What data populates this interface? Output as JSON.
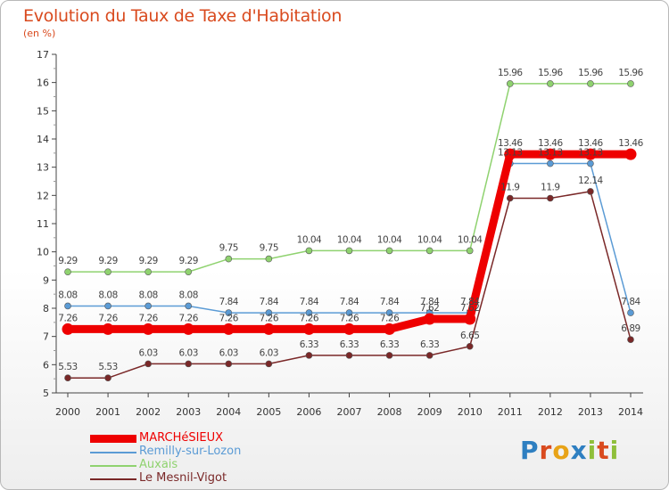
{
  "header": {
    "title": "Evolution du Taux de Taxe d'Habitation",
    "subtitle": "(en %)"
  },
  "logo": {
    "text": "Proxiti"
  },
  "chart_data": {
    "type": "line",
    "title": "Evolution du Taux de Taxe d'Habitation",
    "ylabel": "(en %)",
    "xlabel": "",
    "x": [
      "2000",
      "2001",
      "2002",
      "2003",
      "2004",
      "2005",
      "2006",
      "2007",
      "2008",
      "2009",
      "2010",
      "2011",
      "2012",
      "2013",
      "2014"
    ],
    "ylim": [
      5,
      17
    ],
    "yticks": [
      5,
      6,
      7,
      8,
      9,
      10,
      11,
      12,
      13,
      14,
      15,
      16,
      17
    ],
    "grid": false,
    "legend_position": "bottom-left",
    "series": [
      {
        "name": "MARCHéSIEUX",
        "color": "#ee0000",
        "values": [
          7.26,
          7.26,
          7.26,
          7.26,
          7.26,
          7.26,
          7.26,
          7.26,
          7.26,
          7.62,
          7.62,
          13.46,
          13.46,
          13.46,
          13.46
        ],
        "labels": [
          "7.26",
          "7.26",
          "7.26",
          "7.26",
          "7.26",
          "7.26",
          "7.26",
          "7.26",
          "7.26",
          "7.62",
          "7.62",
          "13.46",
          "13.46",
          "13.46",
          "13.46"
        ]
      },
      {
        "name": "Remilly-sur-Lozon",
        "color": "#5b9bd5",
        "values": [
          8.08,
          8.08,
          8.08,
          8.08,
          7.84,
          7.84,
          7.84,
          7.84,
          7.84,
          7.84,
          7.84,
          13.13,
          13.13,
          13.13,
          7.84
        ],
        "labels": [
          "8.08",
          "8.08",
          "8.08",
          "8.08",
          "7.84",
          "7.84",
          "7.84",
          "7.84",
          "7.84",
          "7.84",
          "7.84",
          "13.13",
          "13.13",
          "13.13",
          "7.84"
        ]
      },
      {
        "name": "Auxais",
        "color": "#8fd26f",
        "values": [
          9.29,
          9.29,
          9.29,
          9.29,
          9.75,
          9.75,
          10.04,
          10.04,
          10.04,
          10.04,
          10.04,
          15.96,
          15.96,
          15.96,
          15.96
        ],
        "labels": [
          "9.29",
          "9.29",
          "9.29",
          "9.29",
          "9.75",
          "9.75",
          "10.04",
          "10.04",
          "10.04",
          "10.04",
          "10.04",
          "15.96",
          "15.96",
          "15.96",
          "15.96"
        ]
      },
      {
        "name": "Le Mesnil-Vigot",
        "color": "#7a2828",
        "values": [
          5.53,
          5.53,
          6.03,
          6.03,
          6.03,
          6.03,
          6.33,
          6.33,
          6.33,
          6.33,
          6.65,
          11.9,
          11.9,
          12.14,
          6.89
        ],
        "labels": [
          "5.53",
          "5.53",
          "6.03",
          "6.03",
          "6.03",
          "6.03",
          "6.33",
          "6.33",
          "6.33",
          "6.33",
          "6.65",
          "11.9",
          "11.9",
          "12.14",
          "6.89"
        ]
      }
    ]
  }
}
